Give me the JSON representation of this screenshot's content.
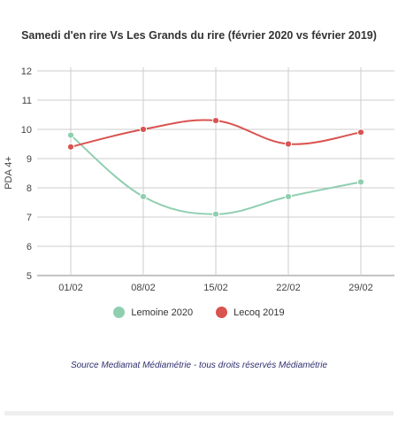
{
  "chart_data": {
    "type": "line",
    "title": "Samedi d'en rire Vs Les Grands du rire (février 2020 vs février 2019)",
    "ylabel": "PDA 4+",
    "xlabel": "",
    "categories": [
      "01/02",
      "08/02",
      "15/02",
      "22/02",
      "29/02"
    ],
    "ylim": [
      5,
      12
    ],
    "yticks": [
      "5",
      "6",
      "7",
      "8",
      "9",
      "10",
      "11",
      "12"
    ],
    "grid": true,
    "legend_position": "bottom",
    "series": [
      {
        "name": "Lemoine 2020",
        "color": "#8fcfb0",
        "values": [
          9.8,
          7.7,
          7.1,
          7.7,
          8.2
        ]
      },
      {
        "name": "Lecoq 2019",
        "color": "#d9534f",
        "values": [
          9.4,
          10.0,
          10.3,
          9.5,
          9.9
        ]
      }
    ]
  },
  "source": "Source Mediamat Médiamétrie - tous droits réservés Médiamétrie"
}
